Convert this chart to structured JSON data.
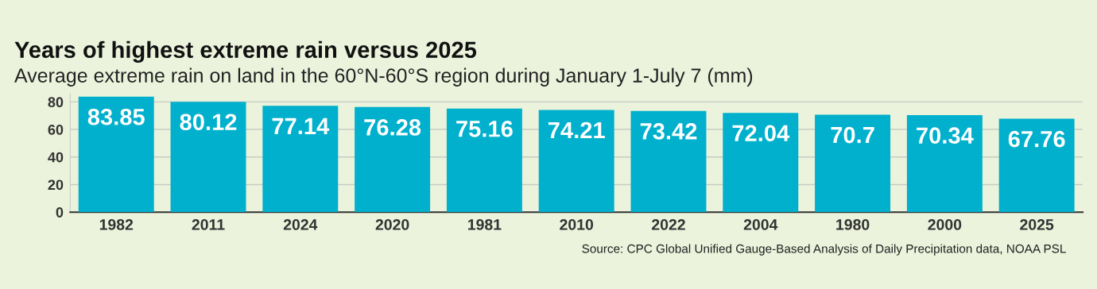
{
  "chart_data": {
    "type": "bar",
    "title": "Years of highest extreme rain versus 2025",
    "subtitle": "Average extreme rain on land in the 60°N-60°S region during January 1-July 7 (mm)",
    "categories": [
      "1982",
      "2011",
      "2024",
      "2020",
      "1981",
      "2010",
      "2022",
      "2004",
      "1980",
      "2000",
      "2025"
    ],
    "values": [
      83.85,
      80.12,
      77.14,
      76.28,
      75.16,
      74.21,
      73.42,
      72.04,
      70.7,
      70.34,
      67.76
    ],
    "color": "#00b0cc",
    "ylim": [
      0,
      86
    ],
    "yticks": [
      0,
      20,
      40,
      60,
      80
    ],
    "grid": "y",
    "data_labels": true,
    "annotations": [
      "Source: CPC Global Unified Gauge-Based Analysis of Daily Precipitation data, NOAA PSL"
    ]
  }
}
